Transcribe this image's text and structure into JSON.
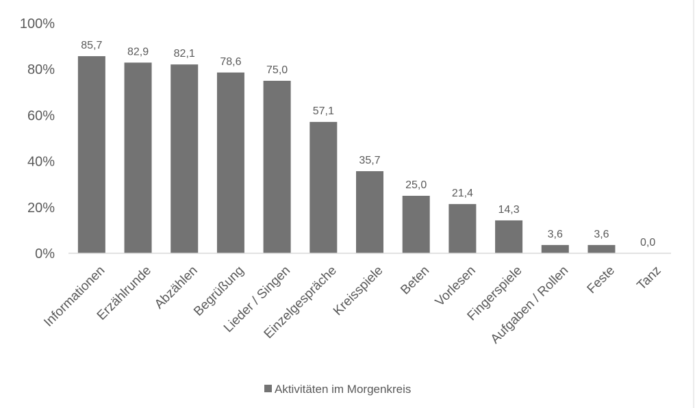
{
  "chart_data": {
    "type": "bar",
    "categories": [
      "Informationen",
      "Erzählrunde",
      "Abzählen",
      "Begrüßung",
      "Lieder / Singen",
      "Einzelgespräche",
      "Kreisspiele",
      "Beten",
      "Vorlesen",
      "Fingerspiele",
      "Aufgaben / Rollen",
      "Feste",
      "Tanz"
    ],
    "series": [
      {
        "name": "Aktivitäten im Morgenkreis",
        "values": [
          85.7,
          82.9,
          82.1,
          78.6,
          75.0,
          57.1,
          35.7,
          25.0,
          21.4,
          14.3,
          3.6,
          3.6,
          0.0
        ],
        "data_labels": [
          "85,7",
          "82,9",
          "82,1",
          "78,6",
          "75,0",
          "57,1",
          "35,7",
          "25,0",
          "21,4",
          "14,3",
          "3,6",
          "3,6",
          "0,0"
        ],
        "color": "#737373"
      }
    ],
    "ylim": [
      0,
      100
    ],
    "yticks": [
      0,
      20,
      40,
      60,
      80,
      100
    ],
    "ytick_labels": [
      "0%",
      "20%",
      "40%",
      "60%",
      "80%",
      "100%"
    ],
    "grid": false,
    "legend": {
      "position": "bottom",
      "label": "Aktivitäten im Morgenkreis"
    },
    "colors": {
      "bar": "#737373",
      "axis": "#d9d9d9",
      "text": "#595959",
      "frame": "#d9d9d9"
    }
  }
}
